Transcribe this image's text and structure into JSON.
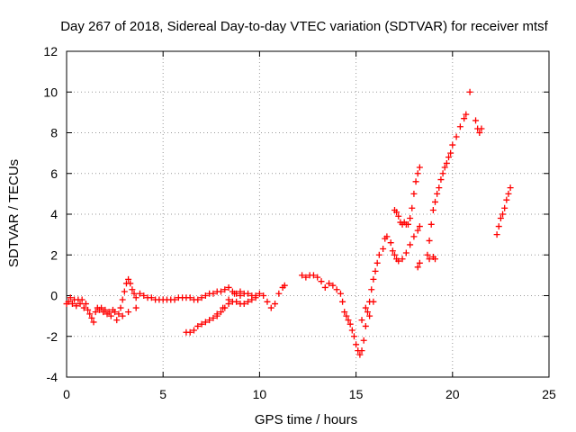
{
  "chart_data": {
    "type": "scatter",
    "title": "Day 267 of 2018, Sidereal Day-to-day VTEC variation (SDTVAR) for receiver mtsf",
    "xlabel": "GPS time / hours",
    "ylabel": "SDTVAR / TECUs",
    "xlim": [
      0,
      25
    ],
    "ylim": [
      -4,
      12
    ],
    "xticks": [
      0,
      5,
      10,
      15,
      20,
      25
    ],
    "yticks": [
      -4,
      -2,
      0,
      2,
      4,
      6,
      8,
      10,
      12
    ],
    "grid": true,
    "marker": "+",
    "color": "#ff0000",
    "series": [
      {
        "name": "sdtvar",
        "points": [
          [
            0.0,
            -0.4
          ],
          [
            0.1,
            -0.3
          ],
          [
            0.2,
            -0.1
          ],
          [
            0.3,
            -0.4
          ],
          [
            0.4,
            -0.2
          ],
          [
            0.5,
            -0.5
          ],
          [
            0.6,
            -0.2
          ],
          [
            0.7,
            -0.4
          ],
          [
            0.8,
            -0.2
          ],
          [
            0.9,
            -0.6
          ],
          [
            1.0,
            -0.4
          ],
          [
            1.1,
            -0.7
          ],
          [
            1.2,
            -0.9
          ],
          [
            1.3,
            -1.1
          ],
          [
            1.4,
            -1.3
          ],
          [
            1.5,
            -0.8
          ],
          [
            1.6,
            -0.6
          ],
          [
            1.7,
            -0.7
          ],
          [
            1.8,
            -0.6
          ],
          [
            1.9,
            -0.8
          ],
          [
            2.0,
            -0.7
          ],
          [
            2.1,
            -0.9
          ],
          [
            2.2,
            -0.8
          ],
          [
            2.3,
            -1.0
          ],
          [
            2.4,
            -0.7
          ],
          [
            2.5,
            -0.8
          ],
          [
            2.6,
            -1.2
          ],
          [
            2.7,
            -0.9
          ],
          [
            2.8,
            -0.6
          ],
          [
            2.9,
            -0.2
          ],
          [
            3.0,
            0.2
          ],
          [
            3.1,
            0.6
          ],
          [
            3.2,
            0.8
          ],
          [
            3.3,
            0.6
          ],
          [
            3.4,
            0.3
          ],
          [
            3.5,
            0.1
          ],
          [
            3.6,
            -0.1
          ],
          [
            3.8,
            0.1
          ],
          [
            4.0,
            0.0
          ],
          [
            4.2,
            -0.1
          ],
          [
            4.4,
            -0.1
          ],
          [
            4.6,
            -0.2
          ],
          [
            4.8,
            -0.2
          ],
          [
            5.0,
            -0.2
          ],
          [
            5.2,
            -0.2
          ],
          [
            5.4,
            -0.2
          ],
          [
            5.6,
            -0.2
          ],
          [
            5.8,
            -0.1
          ],
          [
            6.0,
            -0.1
          ],
          [
            6.2,
            -0.1
          ],
          [
            6.4,
            -0.1
          ],
          [
            6.6,
            -0.2
          ],
          [
            6.8,
            -0.2
          ],
          [
            7.0,
            -0.1
          ],
          [
            7.2,
            0.0
          ],
          [
            7.4,
            0.1
          ],
          [
            7.6,
            0.1
          ],
          [
            7.8,
            0.2
          ],
          [
            8.0,
            0.2
          ],
          [
            8.2,
            0.3
          ],
          [
            8.4,
            0.4
          ],
          [
            8.6,
            0.2
          ],
          [
            8.8,
            0.1
          ],
          [
            9.0,
            0.0
          ],
          [
            9.2,
            0.1
          ],
          [
            9.4,
            0.1
          ],
          [
            9.6,
            0.0
          ],
          [
            9.8,
            0.0
          ],
          [
            10.0,
            0.1
          ],
          [
            10.2,
            0.0
          ],
          [
            10.4,
            -0.3
          ],
          [
            10.6,
            -0.6
          ],
          [
            10.8,
            -0.4
          ],
          [
            11.0,
            0.1
          ],
          [
            11.2,
            0.4
          ],
          [
            11.3,
            0.5
          ],
          [
            3.6,
            -0.6
          ],
          [
            3.2,
            -0.8
          ],
          [
            2.9,
            -1.0
          ],
          [
            6.2,
            -1.8
          ],
          [
            6.4,
            -1.8
          ],
          [
            6.6,
            -1.7
          ],
          [
            6.8,
            -1.5
          ],
          [
            7.0,
            -1.4
          ],
          [
            7.2,
            -1.3
          ],
          [
            7.4,
            -1.2
          ],
          [
            7.6,
            -1.1
          ],
          [
            7.8,
            -1.0
          ],
          [
            8.0,
            -0.8
          ],
          [
            8.2,
            -0.6
          ],
          [
            8.4,
            -0.4
          ],
          [
            8.6,
            -0.3
          ],
          [
            8.8,
            -0.3
          ],
          [
            9.0,
            -0.4
          ],
          [
            9.2,
            -0.4
          ],
          [
            9.4,
            -0.3
          ],
          [
            9.6,
            -0.2
          ],
          [
            9.8,
            -0.1
          ],
          [
            7.8,
            -0.9
          ],
          [
            8.1,
            -0.6
          ],
          [
            8.4,
            -0.2
          ],
          [
            8.7,
            0.1
          ],
          [
            9.0,
            0.2
          ],
          [
            12.2,
            1.0
          ],
          [
            12.4,
            0.9
          ],
          [
            12.6,
            1.0
          ],
          [
            12.8,
            1.0
          ],
          [
            13.0,
            0.9
          ],
          [
            13.2,
            0.7
          ],
          [
            13.4,
            0.4
          ],
          [
            13.6,
            0.6
          ],
          [
            13.8,
            0.5
          ],
          [
            14.0,
            0.3
          ],
          [
            14.2,
            0.1
          ],
          [
            14.3,
            -0.3
          ],
          [
            14.4,
            -0.8
          ],
          [
            14.5,
            -1.0
          ],
          [
            14.6,
            -1.2
          ],
          [
            14.7,
            -1.4
          ],
          [
            14.8,
            -1.7
          ],
          [
            14.9,
            -2.0
          ],
          [
            15.0,
            -2.4
          ],
          [
            15.1,
            -2.7
          ],
          [
            15.2,
            -2.9
          ],
          [
            15.3,
            -2.7
          ],
          [
            15.4,
            -2.2
          ],
          [
            15.5,
            -1.5
          ],
          [
            15.6,
            -0.8
          ],
          [
            15.7,
            -0.3
          ],
          [
            15.8,
            0.3
          ],
          [
            15.9,
            0.8
          ],
          [
            16.0,
            1.2
          ],
          [
            16.1,
            1.6
          ],
          [
            16.2,
            2.0
          ],
          [
            15.3,
            -1.2
          ],
          [
            15.5,
            -0.6
          ],
          [
            15.7,
            -1.0
          ],
          [
            15.9,
            -0.3
          ],
          [
            16.4,
            2.3
          ],
          [
            16.5,
            2.8
          ],
          [
            16.6,
            2.9
          ],
          [
            16.8,
            2.6
          ],
          [
            16.9,
            2.2
          ],
          [
            17.0,
            2.0
          ],
          [
            17.1,
            1.8
          ],
          [
            17.2,
            1.7
          ],
          [
            17.4,
            1.8
          ],
          [
            17.6,
            2.1
          ],
          [
            17.8,
            2.5
          ],
          [
            18.0,
            2.9
          ],
          [
            18.2,
            3.2
          ],
          [
            18.3,
            3.4
          ],
          [
            17.0,
            4.2
          ],
          [
            17.1,
            4.1
          ],
          [
            17.2,
            3.9
          ],
          [
            17.3,
            3.6
          ],
          [
            17.4,
            3.5
          ],
          [
            17.5,
            3.6
          ],
          [
            17.6,
            3.5
          ],
          [
            17.7,
            3.5
          ],
          [
            17.8,
            3.8
          ],
          [
            17.9,
            4.3
          ],
          [
            18.0,
            5.0
          ],
          [
            18.1,
            5.6
          ],
          [
            18.2,
            6.0
          ],
          [
            18.3,
            6.3
          ],
          [
            18.2,
            1.4
          ],
          [
            18.3,
            1.6
          ],
          [
            18.7,
            2.0
          ],
          [
            18.8,
            2.7
          ],
          [
            18.9,
            3.5
          ],
          [
            19.0,
            4.2
          ],
          [
            19.1,
            4.6
          ],
          [
            19.2,
            5.0
          ],
          [
            19.3,
            5.3
          ],
          [
            19.4,
            5.7
          ],
          [
            19.5,
            6.0
          ],
          [
            19.6,
            6.3
          ],
          [
            19.7,
            6.5
          ],
          [
            19.8,
            6.8
          ],
          [
            19.9,
            7.0
          ],
          [
            20.0,
            7.4
          ],
          [
            20.2,
            7.8
          ],
          [
            20.4,
            8.3
          ],
          [
            20.6,
            8.7
          ],
          [
            20.7,
            8.9
          ],
          [
            18.8,
            1.8
          ],
          [
            19.0,
            1.9
          ],
          [
            19.1,
            1.8
          ],
          [
            20.9,
            10.0
          ],
          [
            21.2,
            8.6
          ],
          [
            21.3,
            8.2
          ],
          [
            21.4,
            8.0
          ],
          [
            21.5,
            8.2
          ],
          [
            22.3,
            3.0
          ],
          [
            22.4,
            3.4
          ],
          [
            22.5,
            3.8
          ],
          [
            22.6,
            4.0
          ],
          [
            22.7,
            4.3
          ],
          [
            22.8,
            4.7
          ],
          [
            22.9,
            5.0
          ],
          [
            23.0,
            5.3
          ]
        ]
      }
    ]
  }
}
